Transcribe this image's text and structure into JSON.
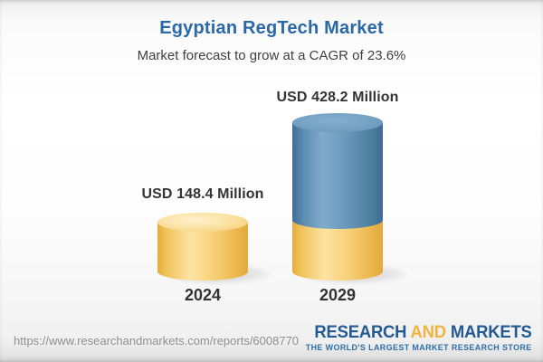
{
  "chart_data": {
    "type": "bar",
    "subtype": "3d-cylinder-column",
    "title": "Egyptian RegTech Market",
    "subtitle": "Market forecast to grow at a CAGR of 23.6%",
    "categories": [
      "2024",
      "2029"
    ],
    "values": [
      148.4,
      428.2
    ],
    "unit": "USD Million",
    "value_labels": [
      "USD 148.4 Million",
      "USD 428.2 Million"
    ],
    "cagr_percent": 23.6,
    "axes_visible": false,
    "grid": false,
    "legend": "none",
    "colors": {
      "base_segment_gold": "#f5c96a",
      "growth_segment_blue": "#6496bc",
      "title_blue": "#2b68a8",
      "label_dark": "#333333"
    },
    "stacking_note": "2029 column is stacked: gold base segment equals the 2024 value, blue segment is the incremental growth"
  },
  "footer": {
    "report_url": "https://www.researchandmarkets.com/reports/6008770",
    "brand": {
      "word_research": "RESEARCH",
      "word_and": "AND",
      "word_markets": "MARKETS",
      "tagline": "THE WORLD'S LARGEST MARKET RESEARCH STORE"
    }
  }
}
